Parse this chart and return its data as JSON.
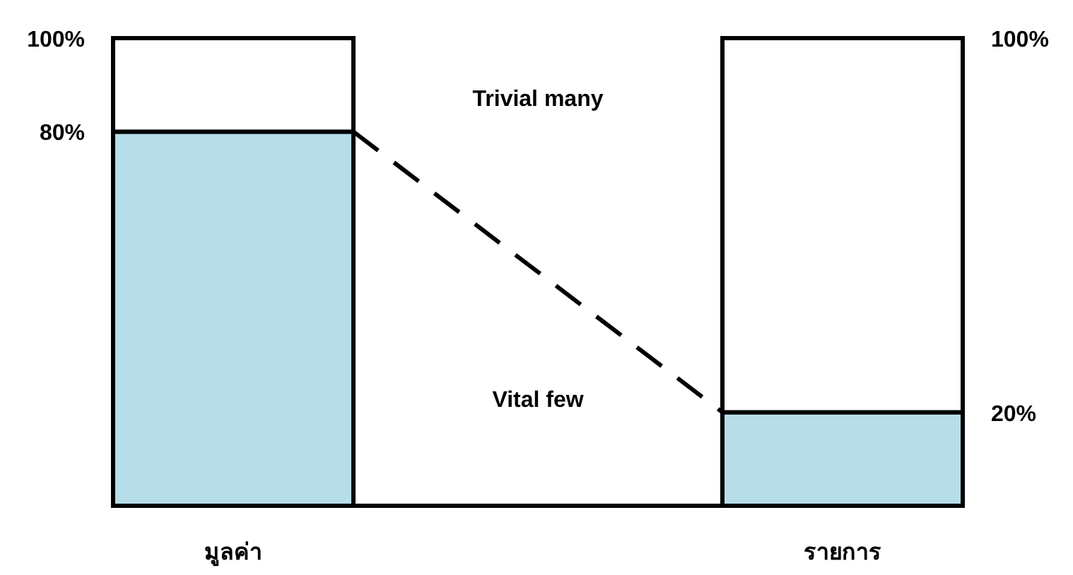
{
  "chart_data": {
    "type": "bar",
    "stacked": true,
    "categories": [
      "มูลค่า",
      "รายการ"
    ],
    "ylim": [
      0,
      100
    ],
    "yticks": [
      {
        "value": 80,
        "label": "80%"
      },
      {
        "value": 100,
        "label": "100%"
      }
    ],
    "y2lim": [
      0,
      100
    ],
    "y2ticks": [
      {
        "value": 20,
        "label": "20%"
      },
      {
        "value": 100,
        "label": "100%"
      }
    ],
    "series": [
      {
        "color": "#b7dde8",
        "values": [
          80,
          20
        ]
      },
      {
        "color": "#ffffff",
        "values": [
          20,
          80
        ]
      }
    ],
    "annotations": [
      "Trivial many",
      "Vital few"
    ]
  }
}
